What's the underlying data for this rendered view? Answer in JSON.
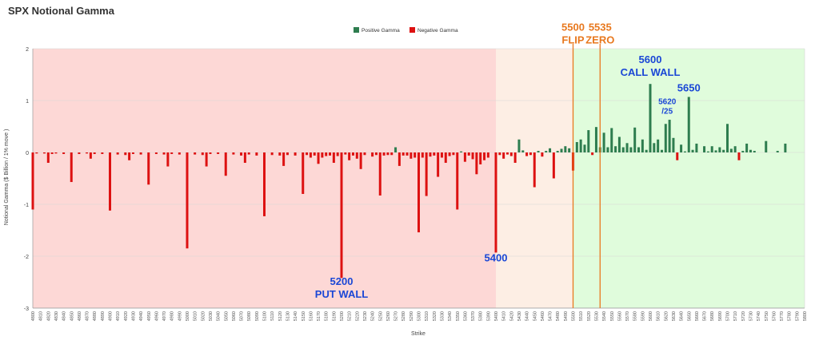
{
  "chart_data": {
    "type": "bar",
    "title": "SPX Notional Gamma",
    "xlabel": "Strike",
    "ylabel": "Notional Gamma ($ Billion / 1% move )",
    "ylim": [
      -3,
      2
    ],
    "yticks": [
      2,
      1,
      0,
      -1,
      -2,
      -3
    ],
    "xlim": [
      4800,
      5800
    ],
    "xtick_step": 10,
    "legend": {
      "placement": "top-center",
      "items": [
        {
          "label": "Positive Gamma",
          "color": "#2e7d4f"
        },
        {
          "label": "Negative Gamma",
          "color": "#dd1111"
        }
      ]
    },
    "colors": {
      "positive": "#2e7d4f",
      "negative": "#dd1111",
      "flip_line": "#e8781e"
    },
    "regions": [
      {
        "from": 4800,
        "to": 5400,
        "color": "#fdd8d6"
      },
      {
        "from": 5400,
        "to": 5500,
        "color": "#fdeee4"
      },
      {
        "from": 5500,
        "to": 5800,
        "color": "#e0fcdc"
      }
    ],
    "vlines": [
      5500,
      5535
    ],
    "annotations": [
      {
        "lines": [
          "5500",
          "FLIP"
        ],
        "x": 5500,
        "y": 2.35,
        "color": "#e8781e"
      },
      {
        "lines": [
          "5535",
          "ZERO"
        ],
        "x": 5535,
        "y": 2.35,
        "color": "#e8781e"
      },
      {
        "lines": [
          "5600",
          "CALL WALL"
        ],
        "x": 5600,
        "y": 1.72,
        "color": "#1a47d6"
      },
      {
        "lines": [
          "5650"
        ],
        "x": 5650,
        "y": 1.18,
        "color": "#1a47d6"
      },
      {
        "lines": [
          "5620",
          "/25"
        ],
        "x": 5622,
        "y": 0.93,
        "color": "#1a47d6",
        "small": true
      },
      {
        "lines": [
          "5400"
        ],
        "x": 5400,
        "y": -2.1,
        "color": "#1a47d6"
      },
      {
        "lines": [
          "5200",
          "PUT WALL"
        ],
        "x": 5200,
        "y": -2.55,
        "color": "#1a47d6"
      }
    ],
    "bars": [
      [
        4800,
        -1.1
      ],
      [
        4805,
        -0.02
      ],
      [
        4815,
        -0.02
      ],
      [
        4820,
        -0.2
      ],
      [
        4825,
        -0.03
      ],
      [
        4830,
        -0.02
      ],
      [
        4840,
        -0.03
      ],
      [
        4850,
        -0.57
      ],
      [
        4860,
        -0.03
      ],
      [
        4870,
        -0.02
      ],
      [
        4875,
        -0.12
      ],
      [
        4880,
        -0.03
      ],
      [
        4890,
        -0.03
      ],
      [
        4900,
        -1.12
      ],
      [
        4910,
        -0.04
      ],
      [
        4920,
        -0.05
      ],
      [
        4925,
        -0.15
      ],
      [
        4930,
        -0.03
      ],
      [
        4940,
        -0.04
      ],
      [
        4950,
        -0.62
      ],
      [
        4960,
        -0.03
      ],
      [
        4970,
        -0.04
      ],
      [
        4975,
        -0.27
      ],
      [
        4980,
        -0.03
      ],
      [
        4990,
        -0.04
      ],
      [
        5000,
        -1.85
      ],
      [
        5010,
        -0.04
      ],
      [
        5020,
        -0.05
      ],
      [
        5025,
        -0.27
      ],
      [
        5030,
        -0.03
      ],
      [
        5040,
        -0.03
      ],
      [
        5050,
        -0.45
      ],
      [
        5060,
        -0.04
      ],
      [
        5070,
        -0.06
      ],
      [
        5075,
        -0.2
      ],
      [
        5080,
        -0.04
      ],
      [
        5090,
        -0.06
      ],
      [
        5100,
        -1.23
      ],
      [
        5110,
        -0.05
      ],
      [
        5120,
        -0.06
      ],
      [
        5125,
        -0.26
      ],
      [
        5130,
        -0.05
      ],
      [
        5140,
        -0.06
      ],
      [
        5150,
        -0.8
      ],
      [
        5155,
        -0.05
      ],
      [
        5160,
        -0.1
      ],
      [
        5165,
        -0.06
      ],
      [
        5170,
        -0.22
      ],
      [
        5175,
        -0.1
      ],
      [
        5180,
        -0.07
      ],
      [
        5185,
        -0.06
      ],
      [
        5190,
        -0.2
      ],
      [
        5195,
        -0.07
      ],
      [
        5200,
        -2.42
      ],
      [
        5205,
        -0.04
      ],
      [
        5210,
        -0.15
      ],
      [
        5215,
        -0.06
      ],
      [
        5220,
        -0.12
      ],
      [
        5225,
        -0.32
      ],
      [
        5230,
        -0.05
      ],
      [
        5240,
        -0.08
      ],
      [
        5245,
        -0.05
      ],
      [
        5250,
        -0.83
      ],
      [
        5255,
        -0.06
      ],
      [
        5260,
        -0.05
      ],
      [
        5265,
        -0.05
      ],
      [
        5270,
        0.1
      ],
      [
        5275,
        -0.26
      ],
      [
        5280,
        -0.06
      ],
      [
        5285,
        -0.06
      ],
      [
        5290,
        -0.12
      ],
      [
        5295,
        -0.1
      ],
      [
        5300,
        -1.54
      ],
      [
        5305,
        -0.1
      ],
      [
        5310,
        -0.84
      ],
      [
        5315,
        -0.08
      ],
      [
        5320,
        -0.06
      ],
      [
        5325,
        -0.47
      ],
      [
        5330,
        -0.1
      ],
      [
        5335,
        -0.2
      ],
      [
        5340,
        -0.07
      ],
      [
        5345,
        -0.05
      ],
      [
        5350,
        -1.1
      ],
      [
        5355,
        0.02
      ],
      [
        5360,
        -0.18
      ],
      [
        5365,
        -0.06
      ],
      [
        5370,
        -0.13
      ],
      [
        5375,
        -0.42
      ],
      [
        5380,
        -0.23
      ],
      [
        5385,
        -0.15
      ],
      [
        5390,
        -0.1
      ],
      [
        5400,
        -1.93
      ],
      [
        5405,
        -0.05
      ],
      [
        5410,
        -0.12
      ],
      [
        5415,
        -0.04
      ],
      [
        5420,
        -0.07
      ],
      [
        5425,
        -0.2
      ],
      [
        5430,
        0.25
      ],
      [
        5435,
        0.04
      ],
      [
        5440,
        -0.07
      ],
      [
        5445,
        -0.05
      ],
      [
        5450,
        -0.67
      ],
      [
        5455,
        0.03
      ],
      [
        5460,
        -0.08
      ],
      [
        5465,
        0.03
      ],
      [
        5470,
        0.08
      ],
      [
        5475,
        -0.5
      ],
      [
        5480,
        0.03
      ],
      [
        5485,
        0.07
      ],
      [
        5490,
        0.12
      ],
      [
        5495,
        0.08
      ],
      [
        5500,
        -0.35
      ],
      [
        5505,
        0.2
      ],
      [
        5510,
        0.25
      ],
      [
        5515,
        0.15
      ],
      [
        5520,
        0.43
      ],
      [
        5525,
        -0.05
      ],
      [
        5530,
        0.49
      ],
      [
        5535,
        0.1
      ],
      [
        5540,
        0.38
      ],
      [
        5545,
        0.1
      ],
      [
        5550,
        0.47
      ],
      [
        5555,
        0.12
      ],
      [
        5560,
        0.3
      ],
      [
        5565,
        0.1
      ],
      [
        5570,
        0.18
      ],
      [
        5575,
        0.1
      ],
      [
        5580,
        0.48
      ],
      [
        5585,
        0.1
      ],
      [
        5590,
        0.25
      ],
      [
        5595,
        0.05
      ],
      [
        5600,
        1.32
      ],
      [
        5605,
        0.18
      ],
      [
        5610,
        0.25
      ],
      [
        5615,
        0.05
      ],
      [
        5620,
        0.55
      ],
      [
        5625,
        0.63
      ],
      [
        5630,
        0.28
      ],
      [
        5635,
        -0.15
      ],
      [
        5640,
        0.15
      ],
      [
        5645,
        0.02
      ],
      [
        5650,
        1.07
      ],
      [
        5655,
        0.05
      ],
      [
        5660,
        0.17
      ],
      [
        5670,
        0.12
      ],
      [
        5675,
        0.02
      ],
      [
        5680,
        0.12
      ],
      [
        5685,
        0.04
      ],
      [
        5690,
        0.1
      ],
      [
        5695,
        0.05
      ],
      [
        5700,
        0.55
      ],
      [
        5705,
        0.07
      ],
      [
        5710,
        0.12
      ],
      [
        5715,
        -0.15
      ],
      [
        5720,
        0.03
      ],
      [
        5725,
        0.17
      ],
      [
        5730,
        0.05
      ],
      [
        5735,
        0.03
      ],
      [
        5750,
        0.22
      ],
      [
        5765,
        0.03
      ],
      [
        5775,
        0.17
      ]
    ]
  }
}
